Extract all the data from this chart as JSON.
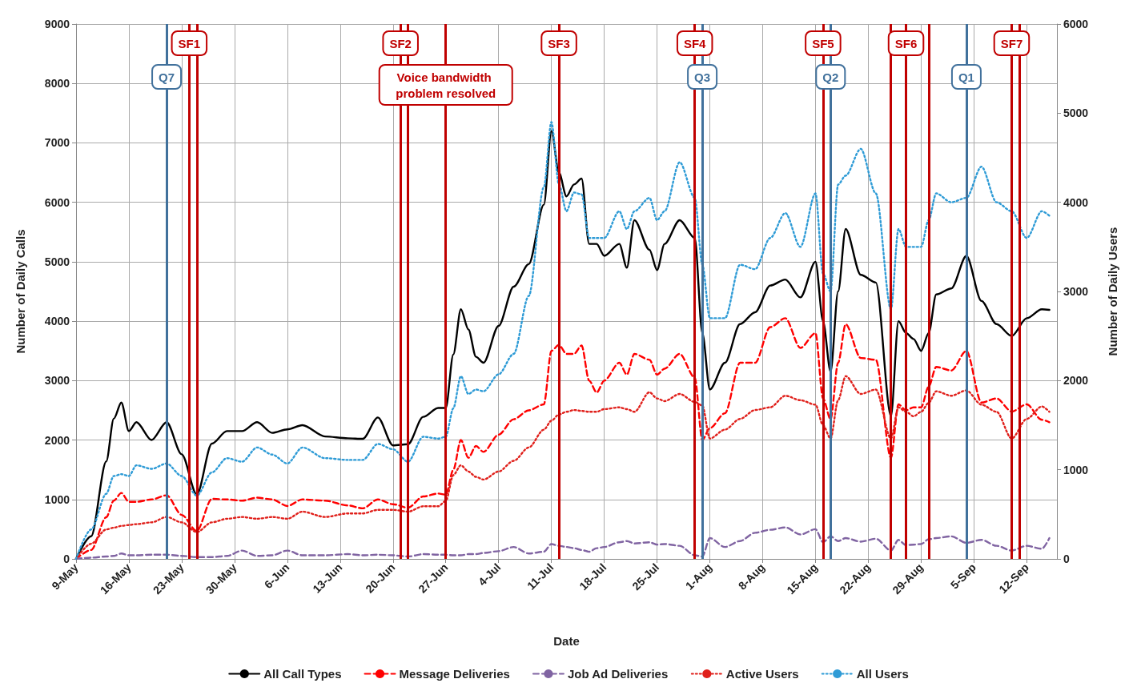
{
  "chart_data": {
    "type": "line",
    "xlabel": "Date",
    "ylabel": "Number of Daily Calls",
    "y2label": "Number of Daily Users",
    "x": [
      "--05-09",
      "--05-11",
      "--05-13",
      "--05-14",
      "--05-15",
      "--05-16",
      "--05-17",
      "--05-19",
      "--05-21",
      "--05-23",
      "--05-25",
      "--05-27",
      "--05-29",
      "--05-31",
      "--06-02",
      "--06-04",
      "--06-06",
      "--06-08",
      "--06-11",
      "--06-14",
      "--06-16",
      "--06-18",
      "--06-20",
      "--06-22",
      "--06-24",
      "--06-26",
      "--06-27",
      "--06-28",
      "--06-29",
      "--06-30",
      "--07-01",
      "--07-02",
      "--07-04",
      "--07-06",
      "--07-08",
      "--07-10",
      "--07-11",
      "--07-12",
      "--07-13",
      "--07-14",
      "--07-15",
      "--07-16",
      "--07-17",
      "--07-18",
      "--07-20",
      "--07-21",
      "--07-22",
      "--07-24",
      "--07-25",
      "--07-26",
      "--07-28",
      "--07-30",
      "--07-31",
      "--08-01",
      "--08-03",
      "--08-05",
      "--08-07",
      "--08-09",
      "--08-11",
      "--08-13",
      "--08-15",
      "--08-16",
      "--08-17",
      "--08-18",
      "--08-19",
      "--08-21",
      "--08-23",
      "--08-25",
      "--08-26",
      "--08-27",
      "--08-28",
      "--08-29",
      "--08-30",
      "--08-31",
      "--09-02",
      "--09-04",
      "--09-06",
      "--09-08",
      "--09-10",
      "--09-12",
      "--09-14",
      "--09-15"
    ],
    "series": [
      {
        "name": "All Call Types",
        "color": "#000000",
        "line_style": "solid",
        "values": [
          0,
          380,
          1640,
          2360,
          2630,
          2150,
          2300,
          2000,
          2300,
          1760,
          1080,
          1940,
          2150,
          2150,
          2300,
          2120,
          2180,
          2250,
          2060,
          2030,
          2020,
          2380,
          1910,
          1930,
          2390,
          2540,
          2540,
          3440,
          4200,
          3860,
          3400,
          3300,
          3920,
          4580,
          4960,
          5960,
          7200,
          6500,
          6100,
          6300,
          6400,
          5300,
          5300,
          5100,
          5300,
          4900,
          5700,
          5200,
          4860,
          5300,
          5700,
          5400,
          3800,
          2850,
          3300,
          3950,
          4150,
          4600,
          4700,
          4400,
          5000,
          4000,
          3150,
          4500,
          5550,
          4780,
          4650,
          2400,
          4000,
          3800,
          3700,
          3500,
          3800,
          4450,
          4550,
          5100,
          4340,
          3950,
          3750,
          4050,
          4200,
          4190
        ]
      },
      {
        "name": "Message Deliveries",
        "color": "#ff0000",
        "line_style": "dashed",
        "values": [
          0,
          150,
          700,
          980,
          1110,
          960,
          960,
          1000,
          1070,
          740,
          470,
          1010,
          1000,
          980,
          1030,
          1000,
          890,
          1000,
          980,
          900,
          850,
          1000,
          920,
          860,
          1050,
          1100,
          1080,
          1500,
          2000,
          1700,
          1900,
          1800,
          2090,
          2350,
          2500,
          2600,
          3500,
          3600,
          3450,
          3450,
          3590,
          3000,
          2800,
          3000,
          3300,
          3100,
          3450,
          3350,
          3100,
          3200,
          3450,
          3050,
          2000,
          2200,
          2450,
          3300,
          3300,
          3900,
          4050,
          3550,
          3800,
          2700,
          2350,
          3300,
          3950,
          3380,
          3350,
          1700,
          2600,
          2500,
          2550,
          2550,
          2900,
          3230,
          3170,
          3500,
          2630,
          2700,
          2480,
          2600,
          2340,
          2300
        ]
      },
      {
        "name": "Job Ad Deliveries",
        "color": "#8064a2",
        "line_style": "dashed",
        "values": [
          0,
          20,
          40,
          50,
          90,
          60,
          60,
          70,
          70,
          50,
          30,
          30,
          50,
          140,
          50,
          60,
          140,
          60,
          60,
          80,
          60,
          70,
          60,
          40,
          80,
          70,
          70,
          60,
          60,
          80,
          80,
          100,
          130,
          200,
          90,
          120,
          250,
          220,
          200,
          180,
          150,
          120,
          180,
          200,
          280,
          300,
          260,
          280,
          240,
          250,
          220,
          60,
          40,
          350,
          200,
          300,
          440,
          490,
          530,
          410,
          500,
          280,
          380,
          300,
          350,
          290,
          340,
          140,
          320,
          230,
          240,
          250,
          330,
          350,
          380,
          270,
          320,
          220,
          140,
          220,
          170,
          350
        ]
      },
      {
        "name": "Active Users",
        "color": "#e0201b",
        "line_style": "dotted",
        "axis": "y2",
        "values": [
          0,
          170,
          330,
          350,
          370,
          380,
          390,
          410,
          470,
          410,
          300,
          410,
          450,
          470,
          450,
          470,
          450,
          530,
          470,
          510,
          510,
          550,
          550,
          530,
          590,
          590,
          650,
          940,
          1050,
          980,
          920,
          890,
          980,
          1100,
          1250,
          1450,
          1550,
          1620,
          1650,
          1670,
          1660,
          1650,
          1650,
          1680,
          1700,
          1680,
          1650,
          1870,
          1800,
          1770,
          1850,
          1760,
          1720,
          1350,
          1450,
          1570,
          1670,
          1700,
          1830,
          1780,
          1730,
          1500,
          1350,
          1780,
          2050,
          1850,
          1900,
          1350,
          1700,
          1650,
          1600,
          1650,
          1750,
          1880,
          1830,
          1890,
          1730,
          1650,
          1350,
          1570,
          1710,
          1650
        ]
      },
      {
        "name": "All Users",
        "color": "#2e9bd6",
        "line_style": "dotted",
        "axis": "y2",
        "values": [
          0,
          330,
          730,
          930,
          950,
          930,
          1050,
          1010,
          1070,
          930,
          710,
          970,
          1130,
          1090,
          1250,
          1170,
          1070,
          1250,
          1130,
          1110,
          1110,
          1290,
          1230,
          1090,
          1370,
          1350,
          1370,
          1690,
          2050,
          1850,
          1900,
          1880,
          2070,
          2300,
          2950,
          4170,
          4900,
          4200,
          3900,
          4110,
          4090,
          3600,
          3600,
          3600,
          3900,
          3700,
          3900,
          4050,
          3800,
          3900,
          4450,
          4050,
          3300,
          2700,
          2700,
          3300,
          3250,
          3600,
          3880,
          3500,
          4100,
          3200,
          3000,
          4200,
          4300,
          4600,
          4100,
          2800,
          3700,
          3500,
          3500,
          3500,
          3800,
          4100,
          4000,
          4050,
          4400,
          4000,
          3900,
          3600,
          3900,
          3850
        ]
      }
    ],
    "xlim": [
      "--05-09",
      "--09-16"
    ],
    "xticks": [
      {
        "value": "--05-09",
        "label": "9-May"
      },
      {
        "value": "--05-16",
        "label": "16-May"
      },
      {
        "value": "--05-23",
        "label": "23-May"
      },
      {
        "value": "--05-30",
        "label": "30-May"
      },
      {
        "value": "--06-06",
        "label": "6-Jun"
      },
      {
        "value": "--06-13",
        "label": "13-Jun"
      },
      {
        "value": "--06-20",
        "label": "20-Jun"
      },
      {
        "value": "--06-27",
        "label": "27-Jun"
      },
      {
        "value": "--07-04",
        "label": "4-Jul"
      },
      {
        "value": "--07-11",
        "label": "11-Jul"
      },
      {
        "value": "--07-18",
        "label": "18-Jul"
      },
      {
        "value": "--07-25",
        "label": "25-Jul"
      },
      {
        "value": "--08-01",
        "label": "1-Aug"
      },
      {
        "value": "--08-08",
        "label": "8-Aug"
      },
      {
        "value": "--08-15",
        "label": "15-Aug"
      },
      {
        "value": "--08-22",
        "label": "22-Aug"
      },
      {
        "value": "--08-29",
        "label": "29-Aug"
      },
      {
        "value": "--09-05",
        "label": "5-Sep"
      },
      {
        "value": "--09-12",
        "label": "12-Sep"
      }
    ],
    "ylim": [
      0,
      9000
    ],
    "yticks": [
      0,
      1000,
      2000,
      3000,
      4000,
      5000,
      6000,
      7000,
      8000,
      9000
    ],
    "y2lim": [
      0,
      6000
    ],
    "y2ticks": [
      0,
      1000,
      2000,
      3000,
      4000,
      5000,
      6000
    ],
    "ref_lines": [
      {
        "axis": "x",
        "value": "--05-24",
        "label": "SF1",
        "color": "#c00000"
      },
      {
        "axis": "x",
        "value": "--05-25",
        "color": "#c00000"
      },
      {
        "axis": "x",
        "value": "--06-21",
        "label": "SF2",
        "color": "#c00000"
      },
      {
        "axis": "x",
        "value": "--06-22",
        "color": "#c00000"
      },
      {
        "axis": "x",
        "value": "--07-12",
        "label": "SF3",
        "color": "#c00000"
      },
      {
        "axis": "x",
        "value": "--07-30",
        "label": "SF4",
        "color": "#c00000"
      },
      {
        "axis": "x",
        "value": "--08-16",
        "label": "SF5",
        "color": "#c00000"
      },
      {
        "axis": "x",
        "value": "--08-25",
        "color": "#c00000"
      },
      {
        "axis": "x",
        "value": "--08-27",
        "label": "SF6",
        "color": "#c00000"
      },
      {
        "axis": "x",
        "value": "--08-30",
        "color": "#c00000"
      },
      {
        "axis": "x",
        "value": "--09-10",
        "label": "SF7",
        "color": "#c00000"
      },
      {
        "axis": "x",
        "value": "--09-11",
        "color": "#c00000"
      },
      {
        "axis": "x",
        "value": "--06-27",
        "label": "Voice bandwidth problem resolved",
        "color": "#c00000"
      },
      {
        "axis": "x",
        "value": "--05-21",
        "label": "Q7",
        "color": "#41719c"
      },
      {
        "axis": "x",
        "value": "--07-31",
        "label": "Q3",
        "color": "#41719c"
      },
      {
        "axis": "x",
        "value": "--08-17",
        "label": "Q2",
        "color": "#41719c"
      },
      {
        "axis": "x",
        "value": "--09-04",
        "label": "Q1",
        "color": "#41719c"
      }
    ],
    "grid": true,
    "legend": "bottom",
    "marker": "none"
  }
}
